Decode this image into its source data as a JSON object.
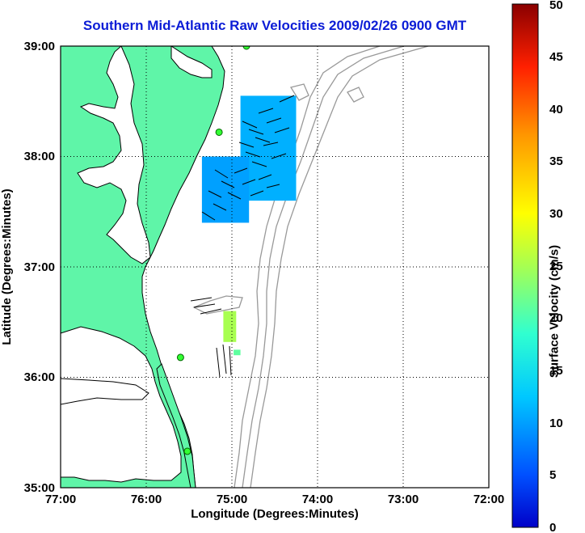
{
  "title": "Southern Mid-Atlantic Raw Velocities 2009/02/26 0900 GMT",
  "x_axis": {
    "label": "Longitude (Degrees:Minutes)",
    "ticks": [
      "77:00",
      "76:00",
      "75:00",
      "74:00",
      "73:00",
      "72:00"
    ]
  },
  "y_axis": {
    "label": "Latitude (Degrees:Minutes)",
    "ticks": [
      "39:00",
      "38:00",
      "37:00",
      "36:00",
      "35:00"
    ]
  },
  "colorbar": {
    "label": "Surface Velocity (cm/s)",
    "range": [
      0,
      50
    ],
    "ticks": [
      "0",
      "5",
      "10",
      "15",
      "20",
      "25",
      "30",
      "35",
      "40",
      "45",
      "50"
    ]
  },
  "colors": {
    "land": "#5ff5a8",
    "coast_line": "#000000",
    "bathymetry": "#999999",
    "title": "#0b1cd6"
  },
  "stations": [
    {
      "lon": -74.83,
      "lat": 39.0
    },
    {
      "lon": -75.15,
      "lat": 38.22
    },
    {
      "lon": -75.6,
      "lat": 36.18
    },
    {
      "lon": -75.52,
      "lat": 35.33
    }
  ],
  "velocity_patches": [
    {
      "lon_min": -74.9,
      "lon_max": -74.25,
      "lat_min": 37.6,
      "lat_max": 38.55,
      "speed_cm_s": 11
    },
    {
      "lon_min": -75.35,
      "lon_max": -74.8,
      "lat_min": 37.4,
      "lat_max": 38.0,
      "speed_cm_s": 10
    },
    {
      "lon_min": -75.1,
      "lon_max": -74.95,
      "lat_min": 36.32,
      "lat_max": 36.6,
      "speed_cm_s": 25
    },
    {
      "lon_min": -74.98,
      "lon_max": -74.9,
      "lat_min": 36.2,
      "lat_max": 36.25,
      "speed_cm_s": 21
    }
  ]
}
